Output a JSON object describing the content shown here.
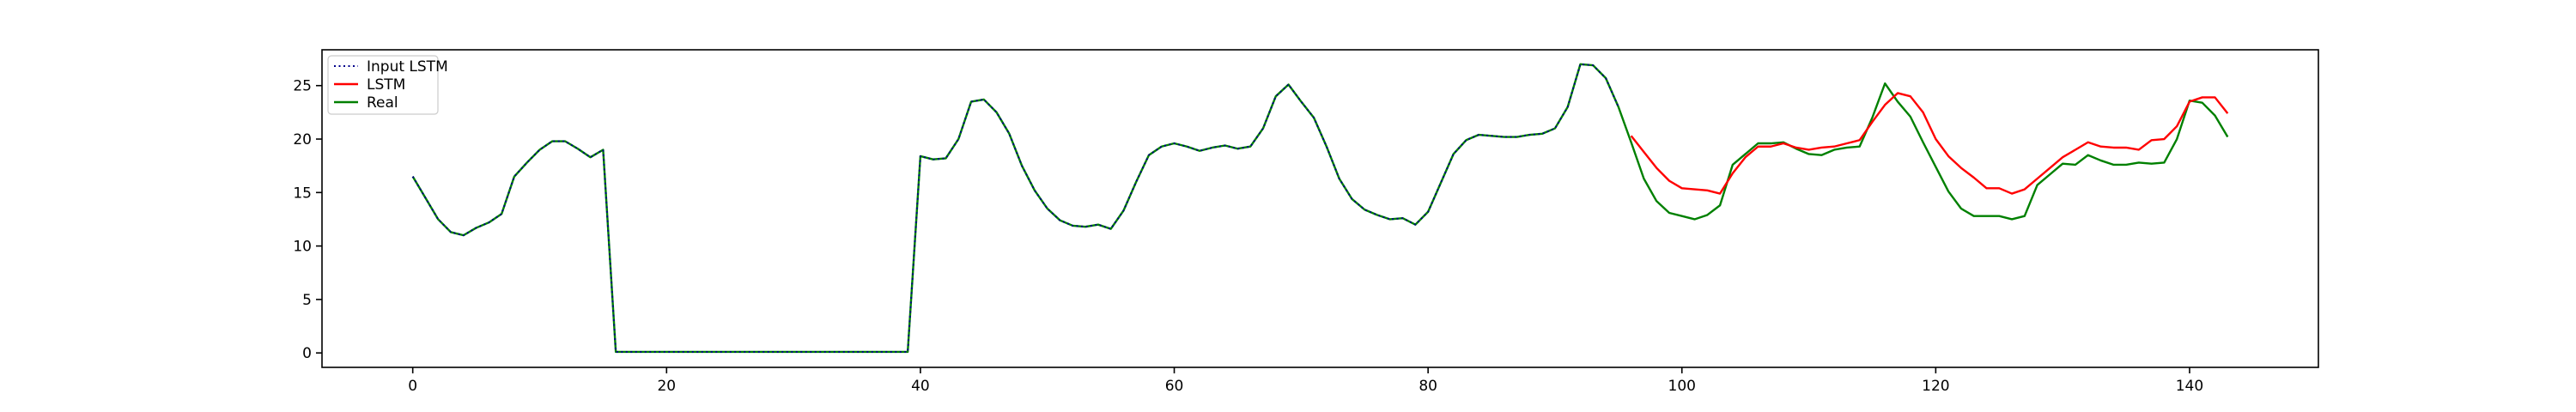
{
  "chart_data": {
    "type": "line",
    "title": "",
    "xlabel": "",
    "ylabel": "",
    "xlim": [
      -7.15,
      150.15
    ],
    "ylim": [
      -1.35,
      28.35
    ],
    "x_ticks": [
      0,
      20,
      40,
      60,
      80,
      100,
      120,
      140
    ],
    "y_ticks": [
      0,
      5,
      10,
      15,
      20,
      25
    ],
    "grid": false,
    "legend_position": "top-left",
    "series": [
      {
        "name": "Input LSTM",
        "color": "#00008b",
        "style": "dotted",
        "x_start": 0,
        "values": [
          16.5,
          14.5,
          12.5,
          11.3,
          11.0,
          11.7,
          12.2,
          13.0,
          16.5,
          17.8,
          19.0,
          19.8,
          19.8,
          19.1,
          18.3,
          19.0,
          0.1,
          0.1,
          0.1,
          0.1,
          0.1,
          0.1,
          0.1,
          0.1,
          0.1,
          0.1,
          0.1,
          0.1,
          0.1,
          0.1,
          0.1,
          0.1,
          0.1,
          0.1,
          0.1,
          0.1,
          0.1,
          0.1,
          0.1,
          0.1,
          18.4,
          18.1,
          18.2,
          20.0,
          23.5,
          23.7,
          22.5,
          20.5,
          17.5,
          15.2,
          13.5,
          12.4,
          11.9,
          11.8,
          12.0,
          11.6,
          13.3,
          16.0,
          18.5,
          19.3,
          19.6,
          19.3,
          18.9,
          19.2,
          19.4,
          19.1,
          19.3,
          21.0,
          24.0,
          25.1,
          23.5,
          22.0,
          19.3,
          16.3,
          14.4,
          13.4,
          12.9,
          12.5,
          12.6,
          12.0,
          13.2,
          15.9,
          18.6,
          19.9,
          20.4,
          20.3,
          20.2,
          20.2,
          20.4,
          20.5,
          21.0,
          23.0,
          27.0,
          26.9,
          25.7,
          23.0
        ]
      },
      {
        "name": "LSTM",
        "color": "#ff0000",
        "style": "solid",
        "x_start": 96,
        "values": [
          20.3,
          18.8,
          17.3,
          16.1,
          15.4,
          15.3,
          15.2,
          14.9,
          16.8,
          18.3,
          19.3,
          19.3,
          19.6,
          19.2,
          19.0,
          19.2,
          19.3,
          19.6,
          19.9,
          21.6,
          23.2,
          24.3,
          24.0,
          22.5,
          20.0,
          18.4,
          17.3,
          16.4,
          15.4,
          15.4,
          14.9,
          15.3,
          16.3,
          17.3,
          18.3,
          19.0,
          19.7,
          19.3,
          19.2,
          19.2,
          19.0,
          19.9,
          20.0,
          21.2,
          23.5,
          23.9,
          23.9,
          22.4
        ]
      },
      {
        "name": "Real",
        "color": "#008000",
        "style": "solid",
        "x_start": 0,
        "values": [
          16.5,
          14.5,
          12.5,
          11.3,
          11.0,
          11.7,
          12.2,
          13.0,
          16.5,
          17.8,
          19.0,
          19.8,
          19.8,
          19.1,
          18.3,
          19.0,
          0.1,
          0.1,
          0.1,
          0.1,
          0.1,
          0.1,
          0.1,
          0.1,
          0.1,
          0.1,
          0.1,
          0.1,
          0.1,
          0.1,
          0.1,
          0.1,
          0.1,
          0.1,
          0.1,
          0.1,
          0.1,
          0.1,
          0.1,
          0.1,
          18.4,
          18.1,
          18.2,
          20.0,
          23.5,
          23.7,
          22.5,
          20.5,
          17.5,
          15.2,
          13.5,
          12.4,
          11.9,
          11.8,
          12.0,
          11.6,
          13.3,
          16.0,
          18.5,
          19.3,
          19.6,
          19.3,
          18.9,
          19.2,
          19.4,
          19.1,
          19.3,
          21.0,
          24.0,
          25.1,
          23.5,
          22.0,
          19.3,
          16.3,
          14.4,
          13.4,
          12.9,
          12.5,
          12.6,
          12.0,
          13.2,
          15.9,
          18.6,
          19.9,
          20.4,
          20.3,
          20.2,
          20.2,
          20.4,
          20.5,
          21.0,
          23.0,
          27.0,
          26.9,
          25.7,
          23.0,
          19.7,
          16.3,
          14.2,
          13.1,
          12.8,
          12.5,
          12.9,
          13.8,
          17.6,
          18.6,
          19.6,
          19.6,
          19.7,
          19.1,
          18.6,
          18.5,
          19.0,
          19.2,
          19.3,
          22.0,
          25.2,
          23.5,
          22.1,
          19.7,
          17.4,
          15.1,
          13.5,
          12.8,
          12.8,
          12.8,
          12.5,
          12.8,
          15.7,
          16.7,
          17.7,
          17.6,
          18.5,
          18.0,
          17.6,
          17.6,
          17.8,
          17.7,
          17.8,
          20.0,
          23.6,
          23.4,
          22.2,
          20.2
        ]
      }
    ]
  }
}
